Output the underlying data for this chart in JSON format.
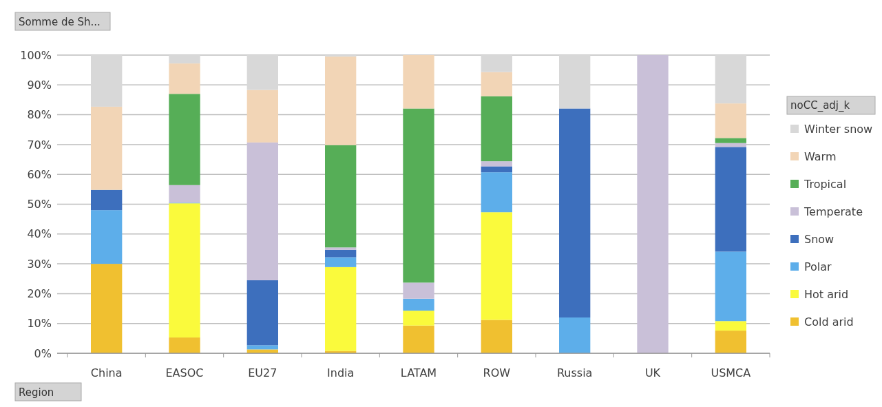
{
  "chart_data": {
    "type": "bar",
    "stacked": true,
    "categories": [
      "China",
      "EASOC",
      "EU27",
      "India",
      "LATAM",
      "ROW",
      "Russia",
      "UK",
      "USMCA"
    ],
    "series": [
      {
        "name": "Cold arid",
        "color": "#f0c030",
        "values": [
          30,
          5.3,
          1.3,
          0.8,
          9.3,
          11.2,
          null,
          0,
          7.6
        ]
      },
      {
        "name": "Hot arid",
        "color": "#fafa3c",
        "values": [
          0,
          45,
          null,
          28.1,
          5,
          36.1,
          0,
          0,
          3.2
        ]
      },
      {
        "name": "Polar",
        "color": "#5daeea",
        "values": [
          18,
          0.2,
          1.4,
          3.3,
          4,
          13.4,
          12,
          0,
          23.3
        ]
      },
      {
        "name": "Snow",
        "color": "#3d6fbd",
        "values": [
          6.8,
          0,
          21.8,
          2.5,
          0,
          2,
          70.1,
          0,
          35.1
        ]
      },
      {
        "name": "Temperate",
        "color": "#c9c0d8",
        "values": [
          null,
          5.9,
          46.2,
          0.8,
          5.4,
          1.7,
          0,
          100,
          1.3
        ]
      },
      {
        "name": "Tropical",
        "color": "#56ae57",
        "values": [
          null,
          30.6,
          0,
          34.3,
          58.4,
          21.8,
          0,
          0,
          1.7
        ]
      },
      {
        "name": "Warm",
        "color": "#f2d5b6",
        "values": [
          27.9,
          10.2,
          17.6,
          29.7,
          17.9,
          8.1,
          null,
          0,
          11.6
        ]
      },
      {
        "name": "Winter snow",
        "color": "#d8d8d8",
        "values": [
          17.3,
          2.8,
          11.7,
          0.5,
          0,
          5.7,
          17.9,
          0,
          16.2
        ]
      }
    ],
    "ylim": [
      0,
      100
    ],
    "yticks": [
      {
        "value": 0,
        "label": "0%"
      },
      {
        "value": 10,
        "label": "10%"
      },
      {
        "value": 20,
        "label": "20%"
      },
      {
        "value": 30,
        "label": "30%"
      },
      {
        "value": 40,
        "label": "40%"
      },
      {
        "value": 50,
        "label": "50%"
      },
      {
        "value": 60,
        "label": "60%"
      },
      {
        "value": 70,
        "label": "70%"
      },
      {
        "value": 80,
        "label": "80%"
      },
      {
        "value": 90,
        "label": "90%"
      },
      {
        "value": 100,
        "label": "100%"
      }
    ],
    "grid": "y",
    "legend": "right",
    "legend_title": "noCC_adj_k",
    "annotations": [
      "Somme de Sh...",
      "Region"
    ]
  }
}
